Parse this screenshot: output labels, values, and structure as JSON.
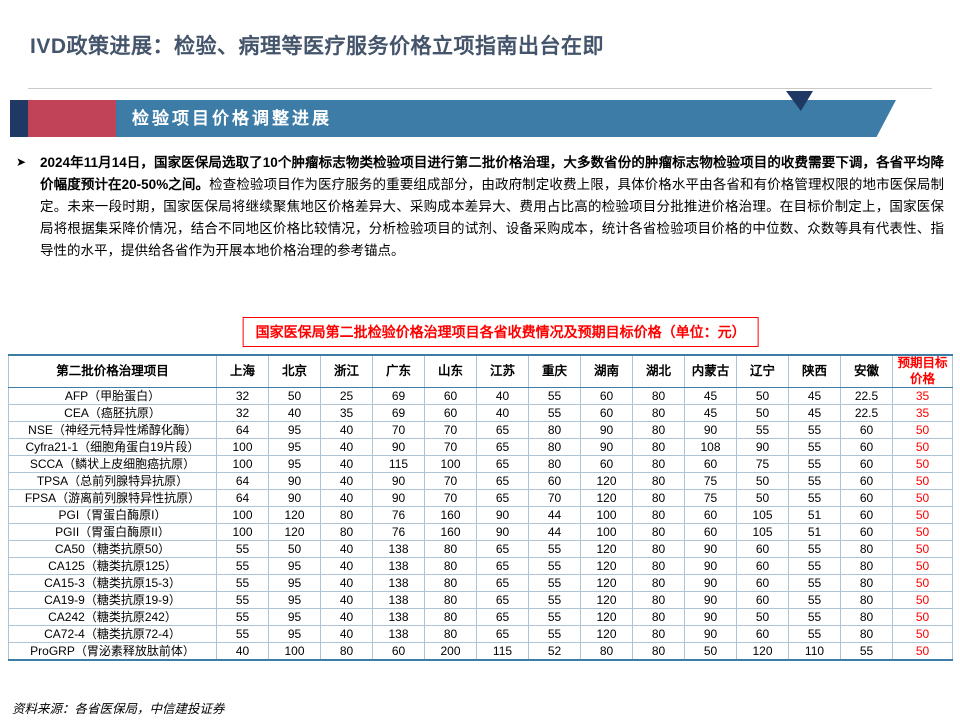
{
  "slide": {
    "title": "IVD政策进展：检验、病理等医疗服务价格立项指南出台在即",
    "section_banner": "检验项目价格调整进展",
    "bullet_marker": "➤",
    "bullet_bold": "2024年11月14日，国家医保局选取了10个肿瘤标志物类检验项目进行第二批价格治理，大多数省份的肿瘤标志物检验项目的收费需要下调，各省平均降价幅度预计在20-50%之间。",
    "bullet_rest": "检查检验项目作为医疗服务的重要组成部分，由政府制定收费上限，具体价格水平由各省和有价格管理权限的地市医保局制定。未来一段时期，国家医保局将继续聚焦地区价格差异大、采购成本差异大、费用占比高的检验项目分批推进价格治理。在目标价制定上，国家医保局将根据集采降价情况，结合不同地区价格比较情况，分析检验项目的试剂、设备采购成本，统计各省检验项目价格的中位数、众数等具有代表性、指导性的水平，提供给各省作为开展本地价格治理的参考锚点。",
    "table_title": "国家医保局第二批检验价格治理项目各省收费情况及预期目标价格（单位：元）",
    "source": "资料来源：各省医保局，中信建投证券"
  },
  "colors": {
    "title_navy": "#44546A",
    "banner_blue": "#3E7CA8",
    "banner_red": "#C04358",
    "accent_navy": "#1F3864",
    "highlight_red": "#FF0000"
  },
  "table": {
    "columns": [
      "第二批价格治理项目",
      "上海",
      "北京",
      "浙江",
      "广东",
      "山东",
      "江苏",
      "重庆",
      "湖南",
      "湖北",
      "内蒙古",
      "辽宁",
      "陕西",
      "安徽",
      "预期目标价格"
    ],
    "rows": [
      {
        "item": "AFP（甲胎蛋白）",
        "values": [
          32,
          50,
          25,
          69,
          60,
          40,
          55,
          60,
          80,
          45,
          50,
          45,
          22.5
        ],
        "target": 35
      },
      {
        "item": "CEA（癌胚抗原）",
        "values": [
          32,
          40,
          35,
          69,
          60,
          40,
          55,
          60,
          80,
          45,
          50,
          45,
          22.5
        ],
        "target": 35
      },
      {
        "item": "NSE（神经元特异性烯醇化酶）",
        "values": [
          64,
          95,
          40,
          70,
          70,
          65,
          80,
          90,
          80,
          90,
          55,
          55,
          60
        ],
        "target": 50
      },
      {
        "item": "Cyfra21-1（细胞角蛋白19片段）",
        "values": [
          100,
          95,
          40,
          90,
          70,
          65,
          80,
          90,
          80,
          108,
          90,
          55,
          60
        ],
        "target": 50
      },
      {
        "item": "SCCA（鳞状上皮细胞癌抗原）",
        "values": [
          100,
          95,
          40,
          115,
          100,
          65,
          80,
          60,
          80,
          60,
          75,
          55,
          60
        ],
        "target": 50
      },
      {
        "item": "TPSA（总前列腺特异抗原）",
        "values": [
          64,
          90,
          40,
          90,
          70,
          65,
          60,
          120,
          80,
          75,
          50,
          55,
          60
        ],
        "target": 50
      },
      {
        "item": "FPSA（游离前列腺特异性抗原）",
        "values": [
          64,
          90,
          40,
          90,
          70,
          65,
          70,
          120,
          80,
          75,
          50,
          55,
          60
        ],
        "target": 50
      },
      {
        "item": "PGI（胃蛋白酶原I）",
        "values": [
          100,
          120,
          80,
          76,
          160,
          90,
          44,
          100,
          80,
          60,
          105,
          51,
          60
        ],
        "target": 50
      },
      {
        "item": "PGII（胃蛋白酶原II）",
        "values": [
          100,
          120,
          80,
          76,
          160,
          90,
          44,
          100,
          80,
          60,
          105,
          51,
          60
        ],
        "target": 50
      },
      {
        "item": "CA50（糖类抗原50）",
        "values": [
          55,
          50,
          40,
          138,
          80,
          65,
          55,
          120,
          80,
          90,
          60,
          55,
          80
        ],
        "target": 50
      },
      {
        "item": "CA125（糖类抗原125）",
        "values": [
          55,
          95,
          40,
          138,
          80,
          65,
          55,
          120,
          80,
          90,
          60,
          55,
          80
        ],
        "target": 50
      },
      {
        "item": "CA15-3（糖类抗原15-3）",
        "values": [
          55,
          95,
          40,
          138,
          80,
          65,
          55,
          120,
          80,
          90,
          60,
          55,
          80
        ],
        "target": 50
      },
      {
        "item": "CA19-9（糖类抗原19-9）",
        "values": [
          55,
          95,
          40,
          138,
          80,
          65,
          55,
          120,
          80,
          90,
          60,
          55,
          80
        ],
        "target": 50
      },
      {
        "item": "CA242（糖类抗原242）",
        "values": [
          55,
          95,
          40,
          138,
          80,
          65,
          55,
          120,
          80,
          90,
          50,
          55,
          80
        ],
        "target": 50
      },
      {
        "item": "CA72-4（糖类抗原72-4）",
        "values": [
          55,
          95,
          40,
          138,
          80,
          65,
          55,
          120,
          80,
          90,
          60,
          55,
          80
        ],
        "target": 50
      },
      {
        "item": "ProGRP（胃泌素释放肽前体）",
        "values": [
          40,
          100,
          80,
          60,
          200,
          115,
          52,
          80,
          80,
          50,
          120,
          110,
          55
        ],
        "target": 50
      }
    ]
  }
}
